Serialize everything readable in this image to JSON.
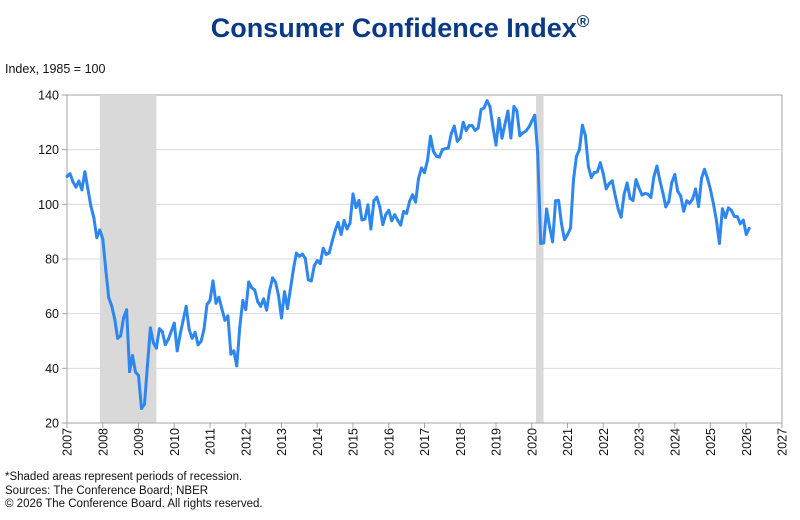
{
  "chart_data": {
    "type": "line",
    "title": "Consumer Confidence Index",
    "title_mark": "®",
    "ylabel": "Index, 1985 = 100",
    "xlabel": "",
    "ylim": [
      20,
      140
    ],
    "xlim": [
      2007,
      2027
    ],
    "yticks": [
      20,
      40,
      60,
      80,
      100,
      120,
      140
    ],
    "xticks": [
      2007,
      2008,
      2009,
      2010,
      2011,
      2012,
      2013,
      2014,
      2015,
      2016,
      2017,
      2018,
      2019,
      2020,
      2021,
      2022,
      2023,
      2024,
      2025,
      2026,
      2027
    ],
    "grid": "horizontal",
    "line_color": "#2e86ef",
    "recession_color": "#d9d9d9",
    "recessions": [
      [
        2007.92,
        2009.5
      ],
      [
        2020.12,
        2020.33
      ]
    ],
    "frequency": "monthly",
    "start": "2007-01",
    "values": [
      110.2,
      111.2,
      108.2,
      106.3,
      108.5,
      105.3,
      111.9,
      105.6,
      99.5,
      95.2,
      87.8,
      90.6,
      87.3,
      76.4,
      65.9,
      62.8,
      58.1,
      51.0,
      51.9,
      58.5,
      61.4,
      38.8,
      44.7,
      38.6,
      37.4,
      25.3,
      26.9,
      40.8,
      54.8,
      49.3,
      47.4,
      54.5,
      53.4,
      48.7,
      50.6,
      53.6,
      56.5,
      46.4,
      52.5,
      57.7,
      62.7,
      54.3,
      51.0,
      53.2,
      48.6,
      49.9,
      54.3,
      63.4,
      64.8,
      72.0,
      63.8,
      66.0,
      61.7,
      57.6,
      59.2,
      45.2,
      46.4,
      40.9,
      55.2,
      64.8,
      61.5,
      71.6,
      69.5,
      68.7,
      64.4,
      62.7,
      65.4,
      61.3,
      68.4,
      73.1,
      71.5,
      66.7,
      58.4,
      68.0,
      61.9,
      69.0,
      76.2,
      82.1,
      81.0,
      81.8,
      80.2,
      72.4,
      72.0,
      77.5,
      79.4,
      78.3,
      83.9,
      81.7,
      82.2,
      86.4,
      90.3,
      93.4,
      89.0,
      94.1,
      91.0,
      93.1,
      103.8,
      98.8,
      101.4,
      94.3,
      94.6,
      99.8,
      91.0,
      101.3,
      102.6,
      99.1,
      92.6,
      96.3,
      97.8,
      94.0,
      96.2,
      94.2,
      92.4,
      97.4,
      96.7,
      101.1,
      103.5,
      100.8,
      109.4,
      113.3,
      111.6,
      116.1,
      124.9,
      119.4,
      117.6,
      117.3,
      120.0,
      120.4,
      120.6,
      125.9,
      128.6,
      123.1,
      124.3,
      130.0,
      127.0,
      128.8,
      128.8,
      127.1,
      127.9,
      134.7,
      135.3,
      137.9,
      135.7,
      128.1,
      121.7,
      131.4,
      124.2,
      129.2,
      134.1,
      124.3,
      135.8,
      134.2,
      125.1,
      126.1,
      126.8,
      128.2,
      130.4,
      132.6,
      118.8,
      85.7,
      85.9,
      98.3,
      91.7,
      86.3,
      101.3,
      101.4,
      92.9,
      87.1,
      88.9,
      91.3,
      109.0,
      117.5,
      120.0,
      128.9,
      125.1,
      113.8,
      109.8,
      111.6,
      111.9,
      115.2,
      111.1,
      105.7,
      107.6,
      108.6,
      103.2,
      98.4,
      95.3,
      103.6,
      107.8,
      102.2,
      101.4,
      109.0,
      106.0,
      103.4,
      104.0,
      103.7,
      102.5,
      110.1,
      114.0,
      108.7,
      104.3,
      99.1,
      101.0,
      108.0,
      110.9,
      104.8,
      103.1,
      97.5,
      101.3,
      100.4,
      101.9,
      105.6,
      99.2,
      109.6,
      112.8,
      109.5,
      105.3,
      100.1,
      93.9,
      85.7,
      98.4,
      95.2,
      98.7,
      97.8,
      95.6,
      95.5,
      92.9,
      94.2,
      89.0,
      91.2
    ]
  },
  "notes": [
    "*Shaded areas represent periods of recession.",
    "Sources:  The Conference Board;  NBER",
    "© 2026 The Conference Board. All rights reserved."
  ]
}
